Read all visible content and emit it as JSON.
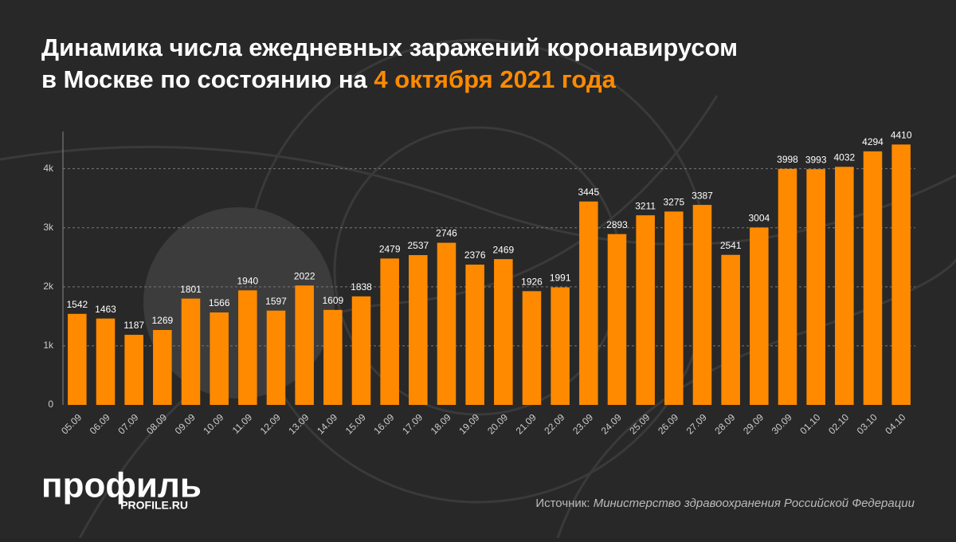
{
  "chart_data": {
    "type": "bar",
    "title": "Динамика числа ежедневных заражений коронавирусом",
    "title_line2": "в Москве по состоянию на ",
    "title_highlight": "4 октября 2021 года",
    "categories": [
      "05.09",
      "06.09",
      "07.09",
      "08.09",
      "09.09",
      "10.09",
      "11.09",
      "12.09",
      "13.09",
      "14.09",
      "15.09",
      "16.09",
      "17.09",
      "18.09",
      "19.09",
      "20.09",
      "21.09",
      "22.09",
      "23.09",
      "24.09",
      "25.09",
      "26.09",
      "27.09",
      "28.09",
      "29.09",
      "30.09",
      "01.10",
      "02.10",
      "03.10",
      "04.10"
    ],
    "values": [
      1542,
      1463,
      1187,
      1269,
      1801,
      1566,
      1940,
      1597,
      2022,
      1609,
      1838,
      2479,
      2537,
      2746,
      2376,
      2469,
      1926,
      1991,
      3445,
      2893,
      3211,
      3275,
      3387,
      2541,
      3004,
      3998,
      3993,
      4032,
      4294,
      4410
    ],
    "color": "#ff8a00",
    "ylim": [
      0,
      4630
    ],
    "yticks": [
      0,
      {
        "value": 1000,
        "label": "1k"
      },
      {
        "value": 2000,
        "label": "2k"
      },
      {
        "value": 3000,
        "label": "3k"
      },
      {
        "value": 4000,
        "label": "4k"
      }
    ],
    "grid": true,
    "logo": "профиль",
    "logo_url": "PROFILE.RU",
    "source_label": "Источник: ",
    "source": "Министерство здравоохранения Российской Федерации"
  }
}
